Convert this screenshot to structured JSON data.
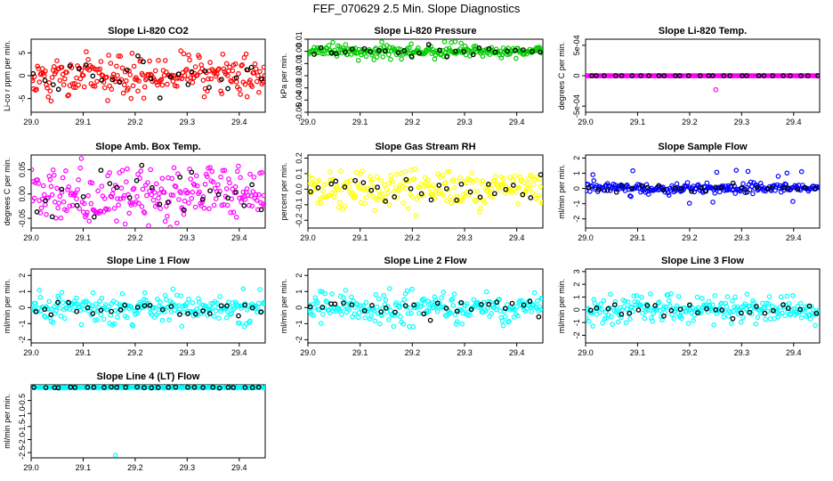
{
  "figure": {
    "title": "FEF_070629  2.5 Min. Slope Diagnostics"
  },
  "colors": {
    "co2": "#ff0000",
    "pressure": "#00cc00",
    "temp": "#ff00ff",
    "boxtemp": "#ff00ff",
    "rh": "#ffff00",
    "flow": "#0000ff",
    "line": "#00ffff",
    "highlight": "#000000"
  },
  "chart_data": [
    {
      "type": "scatter",
      "id": "co2",
      "title": "Slope Li-820 CO2",
      "ylabel": "Li-co r ppm per min.",
      "xlim": [
        29.0,
        29.45
      ],
      "ylim": [
        -8,
        8
      ],
      "xticks": [
        "29.0",
        "29.1",
        "29.2",
        "29.3",
        "29.4"
      ],
      "yticks": [
        "-5",
        "0",
        "5"
      ],
      "ytick_values": [
        -5,
        0,
        5
      ],
      "color_key": "co2",
      "spread": 2.2,
      "outlier_rate": 0.2,
      "outlier_amp": 5.0,
      "n": 240,
      "seed": 11
    },
    {
      "type": "scatter",
      "id": "pressure",
      "title": "Slope Li-820 Pressure",
      "ylabel": "kPa per min.",
      "xlim": [
        29.0,
        29.45
      ],
      "ylim": [
        -0.05,
        0.01
      ],
      "xticks": [
        "29.0",
        "29.1",
        "29.2",
        "29.3",
        "29.4"
      ],
      "yticks": [
        "-0.05",
        "-0.04",
        "-0.03",
        "-0.02",
        "-0.01",
        "0.00",
        "0.01"
      ],
      "ytick_values": [
        -0.05,
        -0.04,
        -0.03,
        -0.02,
        -0.01,
        0.0,
        0.01
      ],
      "color_key": "pressure",
      "spread": 0.002,
      "outlier_rate": 0.12,
      "outlier_amp": 0.008,
      "n": 240,
      "seed": 23
    },
    {
      "type": "scatter",
      "id": "temp",
      "title": "Slope Li-820 Temp.",
      "ylabel": "degrees C per min.",
      "xlim": [
        29.0,
        29.45
      ],
      "ylim": [
        -0.0006,
        0.0006
      ],
      "xticks": [
        "29.0",
        "29.1",
        "29.2",
        "29.3",
        "29.4"
      ],
      "yticks": [
        "-5e-04",
        "0",
        "5e-04"
      ],
      "ytick_values": [
        -0.0005,
        0,
        0.0005
      ],
      "color_key": "temp",
      "spread": 0.0,
      "outlier_rate": 0.05,
      "outlier_amp": 0.0005,
      "n": 240,
      "seed": 37
    },
    {
      "type": "scatter",
      "id": "boxtemp",
      "title": "Slope Amb. Box Temp.",
      "ylabel": "degrees C per min.",
      "xlim": [
        29.0,
        29.45
      ],
      "ylim": [
        -0.07,
        0.08
      ],
      "xticks": [
        "29.0",
        "29.1",
        "29.2",
        "29.3",
        "29.4"
      ],
      "yticks": [
        "-0.05",
        "0.00",
        "0.05"
      ],
      "ytick_values": [
        -0.05,
        0.0,
        0.05
      ],
      "color_key": "boxtemp",
      "spread": 0.03,
      "outlier_rate": 0.05,
      "outlier_amp": 0.05,
      "n": 240,
      "seed": 41
    },
    {
      "type": "scatter",
      "id": "rh",
      "title": "Slope Gas Stream RH",
      "ylabel": "percent per min.",
      "xlim": [
        29.0,
        29.45
      ],
      "ylim": [
        -0.25,
        0.22
      ],
      "xticks": [
        "29.0",
        "29.1",
        "29.2",
        "29.3",
        "29.4"
      ],
      "yticks": [
        "-0.2",
        "-0.1",
        "0.0",
        "0.1",
        "0.2"
      ],
      "ytick_values": [
        -0.2,
        -0.1,
        0.0,
        0.1,
        0.2
      ],
      "color_key": "rh",
      "spread": 0.06,
      "outlier_rate": 0.1,
      "outlier_amp": 0.12,
      "n": 240,
      "seed": 53
    },
    {
      "type": "scatter",
      "id": "flow",
      "title": "Slope Sample Flow",
      "ylabel": "ml/min per min.",
      "xlim": [
        29.0,
        29.45
      ],
      "ylim": [
        -2.6,
        2.2
      ],
      "xticks": [
        "29.0",
        "29.1",
        "29.2",
        "29.3",
        "29.4"
      ],
      "yticks": [
        "-2",
        "-1",
        "0",
        "1",
        "2"
      ],
      "ytick_values": [
        -2,
        -1,
        0,
        1,
        2
      ],
      "color_key": "flow",
      "spread": 0.15,
      "outlier_rate": 0.1,
      "outlier_amp": 1.2,
      "n": 240,
      "seed": 67
    },
    {
      "type": "scatter",
      "id": "line1",
      "title": "Slope Line 1 Flow",
      "ylabel": "ml/min per min.",
      "xlim": [
        29.0,
        29.45
      ],
      "ylim": [
        -2.2,
        2.4
      ],
      "xticks": [
        "29.0",
        "29.1",
        "29.2",
        "29.3",
        "29.4"
      ],
      "yticks": [
        "-2",
        "-1",
        "0",
        "1",
        "2"
      ],
      "ytick_values": [
        -2,
        -1,
        0,
        1,
        2
      ],
      "color_key": "line",
      "spread": 0.3,
      "outlier_rate": 0.3,
      "outlier_amp": 1.2,
      "n": 240,
      "seed": 71
    },
    {
      "type": "scatter",
      "id": "line2",
      "title": "Slope Line 2 Flow",
      "ylabel": "ml/min per min.",
      "xlim": [
        29.0,
        29.45
      ],
      "ylim": [
        -2.2,
        2.4
      ],
      "xticks": [
        "29.0",
        "29.1",
        "29.2",
        "29.3",
        "29.4"
      ],
      "yticks": [
        "-2",
        "-1",
        "0",
        "1",
        "2"
      ],
      "ytick_values": [
        -2,
        -1,
        0,
        1,
        2
      ],
      "color_key": "line",
      "spread": 0.3,
      "outlier_rate": 0.3,
      "outlier_amp": 1.2,
      "n": 240,
      "seed": 83
    },
    {
      "type": "scatter",
      "id": "line3",
      "title": "Slope Line 3 Flow",
      "ylabel": "ml/min per min.",
      "xlim": [
        29.0,
        29.45
      ],
      "ylim": [
        -2.6,
        3.2
      ],
      "xticks": [
        "29.0",
        "29.1",
        "29.2",
        "29.3",
        "29.4"
      ],
      "yticks": [
        "-2",
        "-1",
        "0",
        "1",
        "2",
        "3"
      ],
      "ytick_values": [
        -2,
        -1,
        0,
        1,
        2,
        3
      ],
      "color_key": "line",
      "spread": 0.3,
      "outlier_rate": 0.3,
      "outlier_amp": 1.3,
      "n": 240,
      "seed": 97
    },
    {
      "type": "scatter",
      "id": "line4",
      "title": "Slope Line 4 (LT) Flow",
      "ylabel": "ml/min per min.",
      "xlim": [
        29.0,
        29.45
      ],
      "ylim": [
        -2.7,
        0.1
      ],
      "xticks": [
        "29.0",
        "29.1",
        "29.2",
        "29.3",
        "29.4"
      ],
      "yticks": [
        "-2.5",
        "-2.0",
        "-1.5",
        "-1.0",
        "-0.5"
      ],
      "ytick_values": [
        -2.5,
        -2.0,
        -1.5,
        -1.0,
        -0.5
      ],
      "color_key": "line",
      "spread": 0.01,
      "outlier_rate": 0.0,
      "outlier_amp": 0.0,
      "n": 240,
      "seed": 101,
      "extra_points": [
        [
          29.162,
          -2.6
        ]
      ]
    }
  ]
}
